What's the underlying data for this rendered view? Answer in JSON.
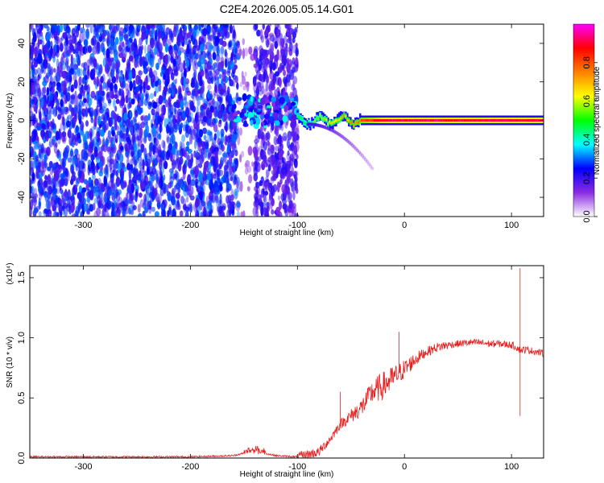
{
  "figure_title": "C2E4.2026.005.05.14.G01",
  "chart_data": [
    {
      "type": "heatmap",
      "title": "C2E4.2026.005.05.14.G01",
      "xlabel": "Height of straight line (km)",
      "ylabel": "Frequency (Hz)",
      "xlim": [
        -350,
        130
      ],
      "ylim": [
        -50,
        50
      ],
      "xticks": [
        -300,
        -200,
        -100,
        0,
        100
      ],
      "yticks": [
        -40,
        -20,
        0,
        20,
        40
      ],
      "colorbar": {
        "label": "Normalized spectral amplitude",
        "range": [
          0,
          1
        ],
        "ticks": [
          0.0,
          0.2,
          0.4,
          0.6,
          0.8
        ],
        "tick_labels": [
          "0.0",
          "0.2",
          "0.4",
          "0.6",
          "0.8"
        ],
        "colors": [
          "#ffffff",
          "#8a2be2",
          "#0000ff",
          "#00ffff",
          "#00ff00",
          "#ffff00",
          "#ff8000",
          "#ff0000",
          "#ff00ff"
        ]
      },
      "regions": [
        {
          "name": "noise",
          "x": [
            -350,
            -155
          ],
          "freq": [
            -50,
            50
          ],
          "amplitude": 0.15
        },
        {
          "name": "noise-gap",
          "x": [
            -155,
            -140
          ],
          "freq": [
            -50,
            50
          ],
          "amplitude": 0.02
        },
        {
          "name": "noise",
          "x": [
            -140,
            -100
          ],
          "freq": [
            -50,
            50
          ],
          "amplitude": 0.1
        },
        {
          "name": "carrier-onset",
          "x": [
            -160,
            -100
          ],
          "freq": [
            -3,
            12
          ],
          "amplitude": 0.3
        },
        {
          "name": "carrier",
          "x": [
            -100,
            130
          ],
          "freq": [
            0,
            0
          ],
          "amplitude": 0.9
        },
        {
          "name": "side-trace",
          "x": [
            -90,
            -30
          ],
          "freq": [
            -2,
            -25
          ],
          "amplitude": 0.2
        }
      ]
    },
    {
      "type": "line",
      "xlabel": "Height of straight line (km)",
      "ylabel": "SNR (10 * v/v)",
      "y_multiplier": "(x10⁴)",
      "xlim": [
        -350,
        130
      ],
      "ylim": [
        0,
        1.6
      ],
      "xticks": [
        -300,
        -200,
        -100,
        0,
        100
      ],
      "yticks": [
        0.0,
        0.5,
        1.0,
        1.5
      ],
      "ytick_labels": [
        "0.0",
        "0.5",
        "1.0",
        "1.5"
      ],
      "color": "#e8201f",
      "series": [
        {
          "name": "SNR",
          "x": [
            -350,
            -300,
            -250,
            -200,
            -160,
            -140,
            -120,
            -100,
            -80,
            -70,
            -60,
            -50,
            -40,
            -30,
            -20,
            -10,
            0,
            10,
            20,
            30,
            40,
            50,
            60,
            70,
            80,
            90,
            100,
            105,
            108,
            110,
            115,
            120,
            130
          ],
          "y": [
            0.01,
            0.01,
            0.01,
            0.01,
            0.02,
            0.06,
            0.02,
            0.01,
            0.05,
            0.15,
            0.28,
            0.35,
            0.42,
            0.55,
            0.6,
            0.67,
            0.74,
            0.82,
            0.88,
            0.92,
            0.94,
            0.95,
            0.96,
            0.96,
            0.95,
            0.95,
            0.94,
            0.92,
            0.9,
            0.9,
            0.9,
            0.89,
            0.87
          ]
        }
      ],
      "spikes": [
        {
          "x": 108,
          "y": 1.58
        },
        {
          "x": 108,
          "y": 0.35
        },
        {
          "x": -5,
          "y": 1.05
        },
        {
          "x": -60,
          "y": 0.55
        }
      ]
    }
  ]
}
